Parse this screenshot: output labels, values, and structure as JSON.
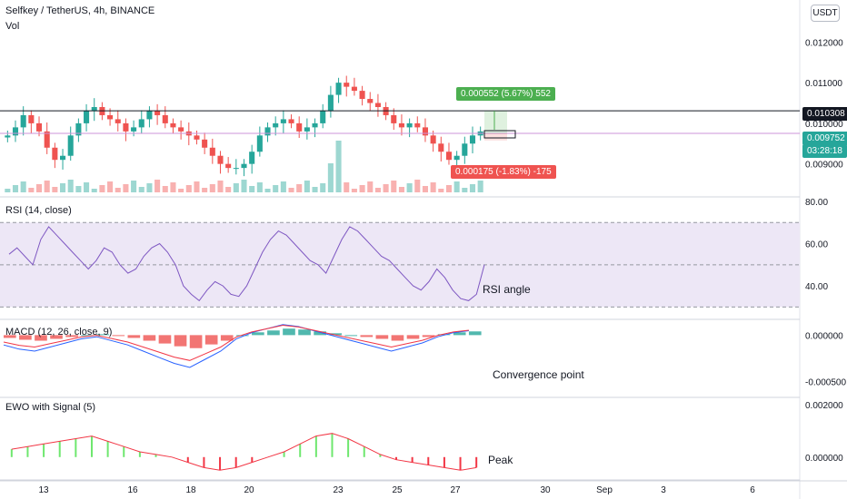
{
  "header": {
    "symbol_line": "Selfkey / TetherUS, 4h, BINANCE",
    "vol_label": "Vol",
    "currency_button": "USDT"
  },
  "colors": {
    "up": "#26a69a",
    "down": "#ef5350",
    "rsi_line": "#7e57c2",
    "rsi_band": "#ede7f6",
    "macd_line": "#2962ff",
    "signal_line": "#f23645",
    "ewo_up": "#6ee76e",
    "ewo_down": "#f23645",
    "resistance": "#131722",
    "current_price": "#26a69a",
    "target_tag": "#4caf50",
    "stop_tag": "#ef5350"
  },
  "price_panel": {
    "y_ticks": [
      "0.012000",
      "0.011000",
      "0.010000",
      "0.009000"
    ],
    "resistance_label": "0.010308",
    "current_price": "0.009752",
    "countdown": "03:28:18",
    "target_label": "0.000552 (5.67%) 552",
    "stop_label": "0.000175 (-1.83%) -175"
  },
  "rsi_panel": {
    "title": "RSI (14, close)",
    "y_ticks": [
      "80.00",
      "60.00",
      "40.00"
    ],
    "annotation": "RSI angle"
  },
  "macd_panel": {
    "title": "MACD (12, 26, close, 9)",
    "y_ticks": [
      "0.000000",
      "-0.000500"
    ],
    "annotation": "Convergence point"
  },
  "ewo_panel": {
    "title": "EWO with Signal (5)",
    "y_ticks": [
      "0.002000",
      "0.000000"
    ],
    "annotation": "Peak"
  },
  "x_axis": {
    "labels": [
      "13",
      "16",
      "18",
      "20",
      "23",
      "25",
      "27",
      "30",
      "Sep",
      "3",
      "6"
    ]
  },
  "chart_data": [
    {
      "type": "candlestick",
      "title": "Selfkey / TetherUS, 4h, BINANCE",
      "ylabel": "USDT",
      "ylim": [
        0.0083,
        0.0125
      ],
      "x_dates": [
        "13",
        "16",
        "18",
        "20",
        "23",
        "25",
        "27",
        "30",
        "Sep",
        "3",
        "6"
      ],
      "resistance": 0.010308,
      "last_price": 0.009752,
      "close_series": [
        0.0097,
        0.0099,
        0.0102,
        0.01,
        0.0098,
        0.0094,
        0.0091,
        0.0092,
        0.0097,
        0.01,
        0.0103,
        0.0104,
        0.0102,
        0.0101,
        0.01,
        0.0098,
        0.0099,
        0.0101,
        0.0103,
        0.0102,
        0.01,
        0.0099,
        0.0098,
        0.0097,
        0.0096,
        0.0094,
        0.0092,
        0.009,
        0.0089,
        0.0089,
        0.009,
        0.0093,
        0.0097,
        0.0099,
        0.01,
        0.0101,
        0.01,
        0.0098,
        0.0099,
        0.01,
        0.0103,
        0.0107,
        0.011,
        0.0109,
        0.0108,
        0.0106,
        0.0105,
        0.0104,
        0.0102,
        0.01,
        0.0099,
        0.01,
        0.0099,
        0.0097,
        0.0095,
        0.0093,
        0.0091,
        0.0092,
        0.0095,
        0.0097,
        0.0098
      ]
    },
    {
      "type": "bar",
      "title": "Vol",
      "note": "volume bars under price"
    },
    {
      "type": "line",
      "title": "RSI (14, close)",
      "ylim": [
        25,
        80
      ],
      "bands": [
        70,
        50,
        30
      ],
      "values": [
        55,
        58,
        54,
        50,
        62,
        68,
        64,
        60,
        56,
        52,
        48,
        52,
        58,
        56,
        50,
        46,
        48,
        54,
        58,
        60,
        56,
        50,
        40,
        36,
        33,
        38,
        42,
        40,
        36,
        35,
        40,
        48,
        56,
        62,
        66,
        64,
        60,
        56,
        52,
        50,
        46,
        54,
        62,
        68,
        66,
        62,
        58,
        54,
        52,
        48,
        44,
        40,
        38,
        42,
        48,
        44,
        38,
        34,
        33,
        36,
        50
      ]
    },
    {
      "type": "bar",
      "title": "MACD (12, 26, close, 9)",
      "ylim": [
        -0.00065,
        0.00015
      ],
      "values": [
        -3e-05,
        -5e-05,
        -6e-05,
        -4e-05,
        -2e-05,
        0.0,
        1e-05,
        -1e-05,
        -3e-05,
        -6e-05,
        -9e-05,
        -0.00012,
        -0.00014,
        -0.0001,
        -6e-05,
        0.0,
        3e-05,
        5e-05,
        7e-05,
        6e-05,
        4e-05,
        2e-05,
        0.0,
        -2e-05,
        -4e-05,
        -6e-05,
        -4e-05,
        -2e-05,
        1e-05,
        3e-05,
        4e-05
      ]
    },
    {
      "type": "bar",
      "title": "EWO with Signal (5)",
      "ylim": [
        -0.0008,
        0.0022
      ],
      "values": [
        0.0003,
        0.0004,
        0.0005,
        0.0006,
        0.0007,
        0.0008,
        0.0006,
        0.0004,
        0.0002,
        0.0001,
        0.0,
        -0.0002,
        -0.0004,
        -0.0005,
        -0.0004,
        -0.0002,
        0.0,
        0.0002,
        0.0005,
        0.0008,
        0.0009,
        0.0007,
        0.0004,
        0.0001,
        -0.0001,
        -0.0002,
        -0.0003,
        -0.0004,
        -0.0005,
        -0.0004
      ]
    }
  ]
}
